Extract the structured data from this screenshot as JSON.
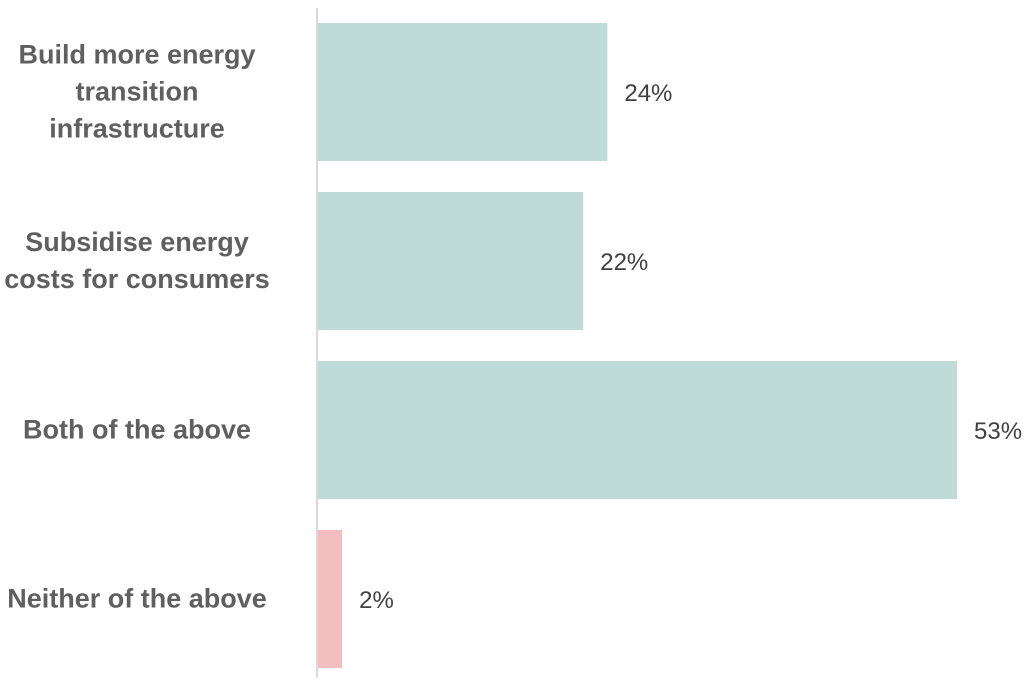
{
  "chart_data": {
    "type": "bar",
    "orientation": "horizontal",
    "categories": [
      "Build more energy transition infrastructure",
      "Subsidise energy costs for consumers",
      "Both of the above",
      "Neither of the above"
    ],
    "category_lines": [
      [
        "Build more energy",
        "transition",
        "infrastructure"
      ],
      [
        "Subsidise energy",
        "costs for consumers"
      ],
      [
        "Both of the above"
      ],
      [
        "Neither of the above"
      ]
    ],
    "values": [
      24,
      22,
      53,
      2
    ],
    "value_labels": [
      "24%",
      "22%",
      "53%",
      "2%"
    ],
    "unit": "%",
    "bar_colors": [
      "#bfdbd7",
      "#bfdbd7",
      "#bfdbd7",
      "#f4bec0"
    ],
    "axis_color": "#d9d9d9",
    "xlim": [
      0,
      53
    ],
    "title": "",
    "xlabel": "",
    "ylabel": "",
    "grid": false,
    "legend": "none"
  }
}
